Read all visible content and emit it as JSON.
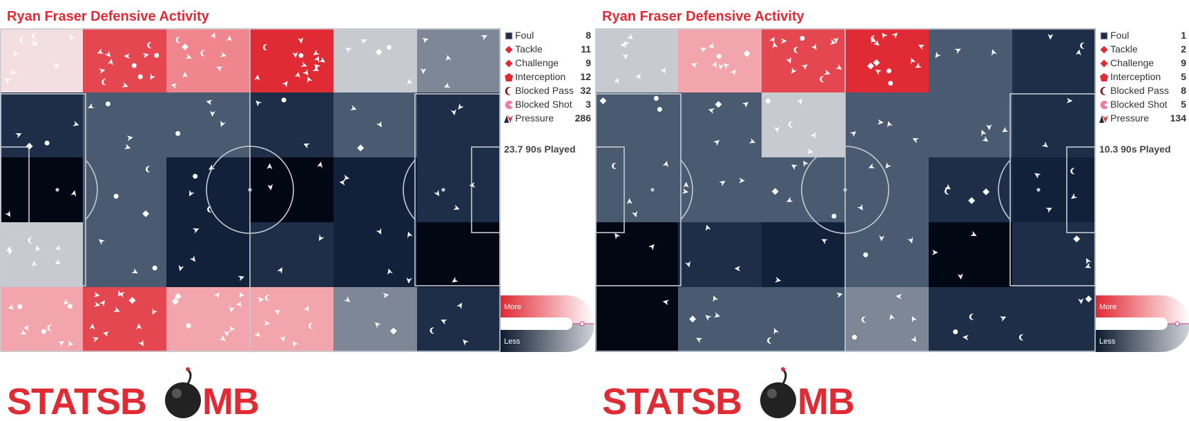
{
  "panels": [
    {
      "title": "Ryan Fraser Defensive Activity",
      "played_text": "23.7 90s Played",
      "legend": [
        {
          "label": "Foul",
          "count": "8",
          "icon": "square-icon"
        },
        {
          "label": "Tackle",
          "count": "11",
          "icon": "diamond-icon"
        },
        {
          "label": "Challenge",
          "count": "9",
          "icon": "diamond-icon"
        },
        {
          "label": "Interception",
          "count": "12",
          "icon": "pentagon-icon"
        },
        {
          "label": "Blocked Pass",
          "count": "32",
          "icon": "crescent-icon"
        },
        {
          "label": "Blocked Shot",
          "count": "3",
          "icon": "pacman-icon"
        },
        {
          "label": "Pressure",
          "count": "286",
          "icon": "chevron-icon"
        }
      ],
      "scale": {
        "more": "More",
        "less": "Less"
      }
    },
    {
      "title": "Ryan Fraser Defensive Activity",
      "played_text": "10.3 90s Played",
      "legend": [
        {
          "label": "Foul",
          "count": "1",
          "icon": "square-icon"
        },
        {
          "label": "Tackle",
          "count": "2",
          "icon": "diamond-icon"
        },
        {
          "label": "Challenge",
          "count": "9",
          "icon": "diamond-icon"
        },
        {
          "label": "Interception",
          "count": "5",
          "icon": "pentagon-icon"
        },
        {
          "label": "Blocked Pass",
          "count": "8",
          "icon": "crescent-icon"
        },
        {
          "label": "Blocked Shot",
          "count": "5",
          "icon": "pacman-icon"
        },
        {
          "label": "Pressure",
          "count": "134",
          "icon": "chevron-icon"
        }
      ],
      "scale": {
        "more": "More",
        "less": "Less"
      }
    }
  ],
  "logo_text": "STATSBOMB",
  "colors": {
    "title": "#e02a34",
    "more": "#e02a34",
    "less": "#0d1b2e",
    "pitch_lines": "#c8ccd2",
    "mark": "#ffffff",
    "heat_scale": {
      "n3": "#010814",
      "n2": "#12203a",
      "n1": "#1e2e48",
      "n0": "#4a5a70",
      "g1": "#7d8796",
      "g2": "#c7cacf",
      "p0": "#f3dfe2",
      "p1": "#f2a5ac",
      "p2": "#ef868e",
      "r1": "#e4474f",
      "r2": "#e02a34"
    },
    "legend_icons": {
      "square-icon": "#1e2e48",
      "diamond-icon": "#e02a34",
      "pentagon-icon": "#e02a34",
      "crescent-icon": "#7a1620",
      "pacman-icon": "#f07aa8",
      "chevron-icon": "#e02a34"
    }
  },
  "chart_data": [
    {
      "type": "heatmap",
      "title": "Ryan Fraser Defensive Activity",
      "columns": 6,
      "rows": 5,
      "grid_levels": [
        [
          "p0",
          "r1",
          "p2",
          "r2",
          "g2",
          "g1"
        ],
        [
          "n1",
          "n0",
          "n0",
          "n1",
          "n0",
          "n1"
        ],
        [
          "n3",
          "n0",
          "n2",
          "n3",
          "n2",
          "n1"
        ],
        [
          "g2",
          "n0",
          "n2",
          "n1",
          "n2",
          "n3"
        ],
        [
          "p1",
          "r1",
          "p1",
          "p1",
          "g1",
          "n1"
        ]
      ],
      "event_counts": {
        "Foul": 8,
        "Tackle": 11,
        "Challenge": 9,
        "Interception": 12,
        "Blocked Pass": 32,
        "Blocked Shot": 3,
        "Pressure": 286
      },
      "nineties_played": 23.7
    },
    {
      "type": "heatmap",
      "title": "Ryan Fraser Defensive Activity",
      "columns": 6,
      "rows": 5,
      "grid_levels": [
        [
          "g2",
          "p1",
          "r1",
          "r2",
          "n0",
          "n1"
        ],
        [
          "n0",
          "n0",
          "g2",
          "n0",
          "n0",
          "n1"
        ],
        [
          "n0",
          "n0",
          "n0",
          "n0",
          "n1",
          "n2"
        ],
        [
          "n3",
          "n1",
          "n2",
          "n0",
          "n3",
          "n1"
        ],
        [
          "n3",
          "n0",
          "n0",
          "g1",
          "n1",
          "n1"
        ]
      ],
      "event_counts": {
        "Foul": 1,
        "Tackle": 2,
        "Challenge": 9,
        "Interception": 5,
        "Blocked Pass": 8,
        "Blocked Shot": 5,
        "Pressure": 134
      },
      "nineties_played": 10.3
    }
  ]
}
